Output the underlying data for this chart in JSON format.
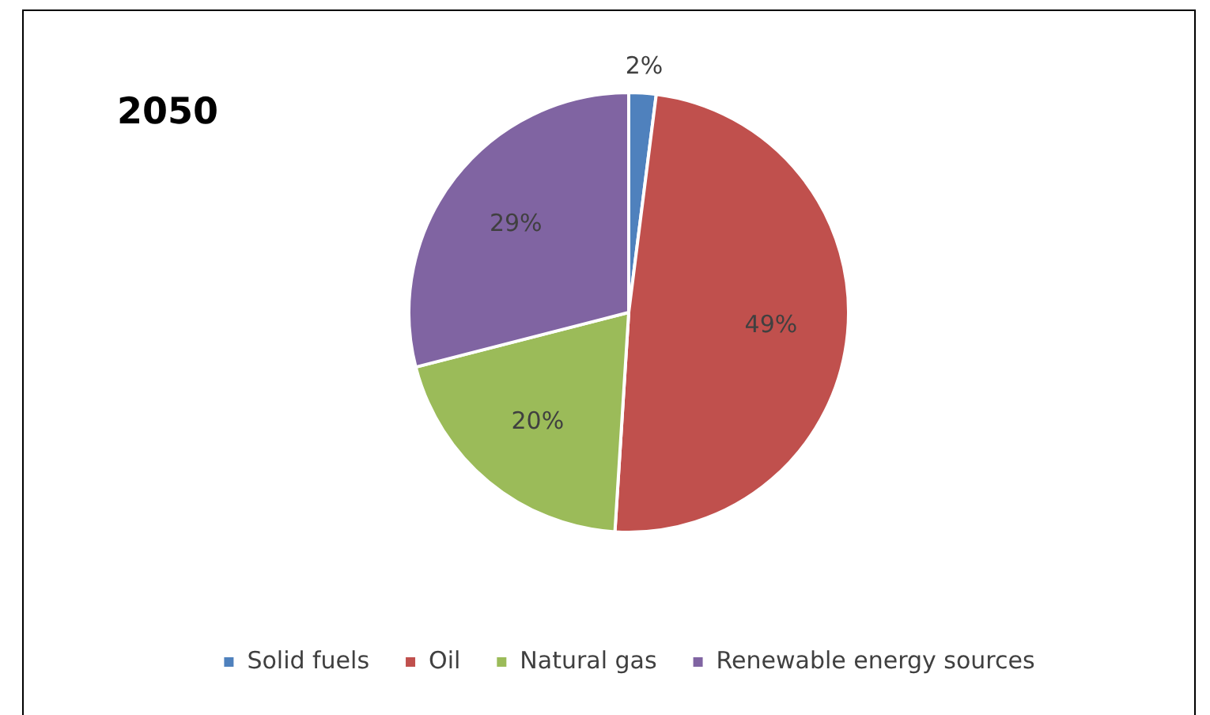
{
  "chart_data": {
    "type": "pie",
    "title": "2050",
    "categories": [
      "Solid fuels",
      "Oil",
      "Natural gas",
      "Renewable energy sources"
    ],
    "values": [
      2,
      49,
      20,
      29
    ],
    "colors": [
      "#4f81bd",
      "#c0504d",
      "#9bbb59",
      "#8064a2"
    ],
    "value_labels": [
      "2%",
      "49%",
      "20%",
      "29%"
    ],
    "legend": "bottom"
  }
}
